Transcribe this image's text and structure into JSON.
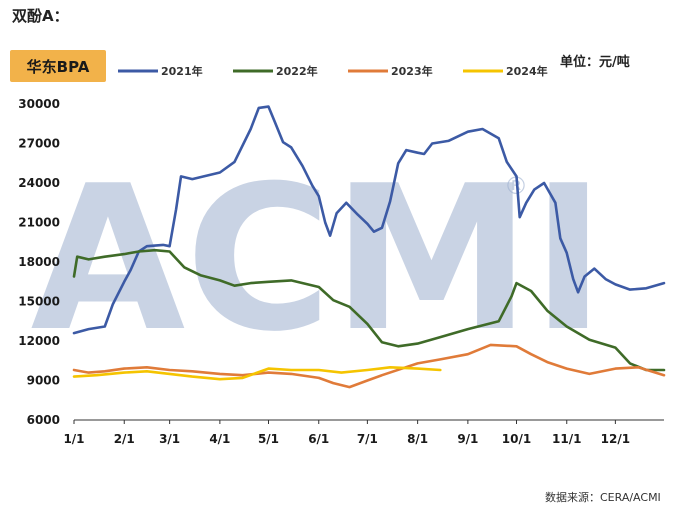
{
  "heading": "双酚A：",
  "badge": "华东BPA",
  "unit": "单位：元/吨",
  "source": "数据来源：CERA/ACMI",
  "watermark": "ACMI",
  "watermark_mark": "®",
  "chart_data": {
    "type": "line",
    "title": "",
    "xlabel": "",
    "ylabel": "",
    "ylim": [
      6000,
      30000
    ],
    "yticks": [
      6000,
      9000,
      12000,
      15000,
      18000,
      21000,
      24000,
      27000,
      30000
    ],
    "xticks": [
      "1/1",
      "2/1",
      "3/1",
      "4/1",
      "5/1",
      "6/1",
      "7/1",
      "8/1",
      "9/1",
      "10/1",
      "11/1",
      "12/1"
    ],
    "legend_position": "top",
    "series": [
      {
        "name": "2021年",
        "color": "#3c5aa5",
        "points": [
          [
            "1/1",
            12600
          ],
          [
            "1/10",
            12900
          ],
          [
            "1/20",
            13100
          ],
          [
            "1/25",
            14800
          ],
          [
            "2/1",
            16500
          ],
          [
            "2/5",
            17400
          ],
          [
            "2/10",
            18800
          ],
          [
            "2/15",
            19200
          ],
          [
            "2/25",
            19300
          ],
          [
            "3/1",
            19200
          ],
          [
            "3/5",
            22000
          ],
          [
            "3/8",
            24500
          ],
          [
            "3/15",
            24300
          ],
          [
            "3/22",
            24500
          ],
          [
            "4/1",
            24800
          ],
          [
            "4/10",
            25600
          ],
          [
            "4/20",
            28100
          ],
          [
            "4/25",
            29700
          ],
          [
            "5/1",
            29800
          ],
          [
            "5/5",
            28600
          ],
          [
            "5/10",
            27100
          ],
          [
            "5/15",
            26700
          ],
          [
            "5/22",
            25300
          ],
          [
            "5/28",
            23800
          ],
          [
            "6/1",
            23000
          ],
          [
            "6/5",
            21000
          ],
          [
            "6/8",
            20000
          ],
          [
            "6/12",
            21700
          ],
          [
            "6/18",
            22500
          ],
          [
            "6/25",
            21600
          ],
          [
            "7/1",
            20900
          ],
          [
            "7/5",
            20300
          ],
          [
            "7/10",
            20600
          ],
          [
            "7/15",
            22600
          ],
          [
            "7/20",
            25500
          ],
          [
            "7/25",
            26500
          ],
          [
            "8/1",
            26300
          ],
          [
            "8/5",
            26200
          ],
          [
            "8/10",
            27000
          ],
          [
            "8/20",
            27200
          ],
          [
            "9/1",
            27900
          ],
          [
            "9/10",
            28100
          ],
          [
            "9/20",
            27400
          ],
          [
            "9/25",
            25600
          ],
          [
            "10/1",
            24500
          ],
          [
            "10/3",
            21400
          ],
          [
            "10/7",
            22500
          ],
          [
            "10/12",
            23500
          ],
          [
            "10/18",
            24000
          ],
          [
            "10/25",
            22500
          ],
          [
            "10/28",
            19800
          ],
          [
            "11/1",
            18700
          ],
          [
            "11/5",
            16700
          ],
          [
            "11/8",
            15700
          ],
          [
            "11/12",
            16900
          ],
          [
            "11/18",
            17500
          ],
          [
            "11/25",
            16700
          ],
          [
            "12/1",
            16300
          ],
          [
            "12/10",
            15900
          ],
          [
            "12/20",
            16000
          ],
          [
            "12/31",
            16400
          ]
        ]
      },
      {
        "name": "2022年",
        "color": "#3f6b28",
        "points": [
          [
            "1/1",
            16900
          ],
          [
            "1/3",
            18400
          ],
          [
            "1/10",
            18200
          ],
          [
            "1/20",
            18400
          ],
          [
            "2/1",
            18600
          ],
          [
            "2/10",
            18800
          ],
          [
            "2/20",
            18900
          ],
          [
            "3/1",
            18800
          ],
          [
            "3/10",
            17600
          ],
          [
            "3/20",
            17000
          ],
          [
            "4/1",
            16600
          ],
          [
            "4/10",
            16200
          ],
          [
            "4/20",
            16400
          ],
          [
            "5/1",
            16500
          ],
          [
            "5/15",
            16600
          ],
          [
            "6/1",
            16100
          ],
          [
            "6/10",
            15100
          ],
          [
            "6/20",
            14600
          ],
          [
            "7/1",
            13300
          ],
          [
            "7/10",
            11900
          ],
          [
            "7/20",
            11600
          ],
          [
            "8/1",
            11800
          ],
          [
            "8/15",
            12300
          ],
          [
            "9/1",
            12900
          ],
          [
            "9/20",
            13500
          ],
          [
            "9/28",
            15400
          ],
          [
            "10/1",
            16400
          ],
          [
            "10/10",
            15800
          ],
          [
            "10/20",
            14300
          ],
          [
            "11/1",
            13100
          ],
          [
            "11/15",
            12100
          ],
          [
            "12/1",
            11500
          ],
          [
            "12/10",
            10300
          ],
          [
            "12/20",
            9800
          ],
          [
            "12/31",
            9800
          ]
        ]
      },
      {
        "name": "2023年",
        "color": "#e07b39",
        "points": [
          [
            "1/1",
            9800
          ],
          [
            "1/10",
            9600
          ],
          [
            "1/20",
            9700
          ],
          [
            "2/1",
            9900
          ],
          [
            "2/15",
            10000
          ],
          [
            "3/1",
            9800
          ],
          [
            "3/15",
            9700
          ],
          [
            "4/1",
            9500
          ],
          [
            "4/15",
            9400
          ],
          [
            "5/1",
            9600
          ],
          [
            "5/15",
            9500
          ],
          [
            "6/1",
            9200
          ],
          [
            "6/10",
            8800
          ],
          [
            "6/20",
            8500
          ],
          [
            "7/1",
            9000
          ],
          [
            "7/10",
            9400
          ],
          [
            "8/1",
            10300
          ],
          [
            "8/15",
            10600
          ],
          [
            "9/1",
            11000
          ],
          [
            "9/15",
            11700
          ],
          [
            "10/1",
            11600
          ],
          [
            "10/10",
            11000
          ],
          [
            "10/20",
            10400
          ],
          [
            "11/1",
            9900
          ],
          [
            "11/15",
            9500
          ],
          [
            "12/1",
            9900
          ],
          [
            "12/15",
            10000
          ],
          [
            "12/31",
            9400
          ]
        ]
      },
      {
        "name": "2024年",
        "color": "#f5c400",
        "points": [
          [
            "1/1",
            9300
          ],
          [
            "1/15",
            9400
          ],
          [
            "2/1",
            9600
          ],
          [
            "2/15",
            9700
          ],
          [
            "3/1",
            9500
          ],
          [
            "3/15",
            9300
          ],
          [
            "4/1",
            9100
          ],
          [
            "4/15",
            9200
          ],
          [
            "5/1",
            9900
          ],
          [
            "5/15",
            9800
          ],
          [
            "6/1",
            9800
          ],
          [
            "6/15",
            9600
          ],
          [
            "7/1",
            9800
          ],
          [
            "7/15",
            10000
          ],
          [
            "8/1",
            9900
          ],
          [
            "8/15",
            9800
          ]
        ]
      }
    ]
  }
}
